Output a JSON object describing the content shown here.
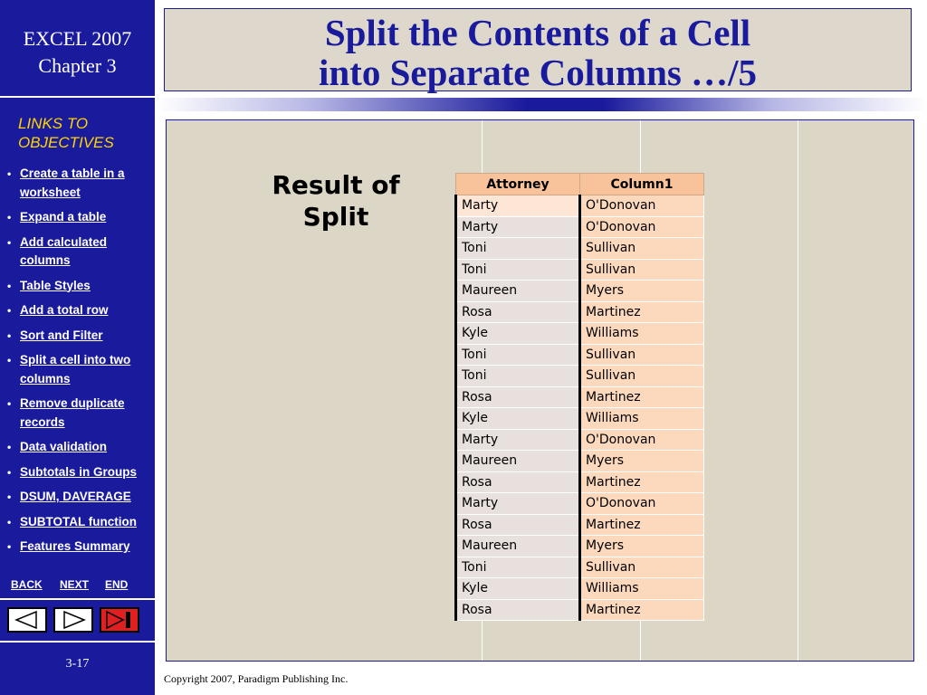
{
  "sidebar": {
    "brand_line1": "EXCEL 2007",
    "brand_line2": "Chapter 3",
    "links_heading_line1": "LINKS TO",
    "links_heading_line2": "OBJECTIVES",
    "links": [
      {
        "label": "Create a table in a worksheet"
      },
      {
        "label": "Expand a table"
      },
      {
        "label": "Add calculated columns"
      },
      {
        "label": "Table Styles"
      },
      {
        "label": "Add a total row"
      },
      {
        "label": "Sort and Filter"
      },
      {
        "label": "Split a cell into two columns"
      },
      {
        "label": "Remove duplicate records"
      },
      {
        "label": "Data validation"
      },
      {
        "label": "Subtotals in Groups"
      },
      {
        "label": "DSUM, DAVERAGE"
      },
      {
        "label": "SUBTOTAL function"
      },
      {
        "label": "Features Summary"
      }
    ],
    "nav": {
      "back": "BACK",
      "next": "NEXT",
      "end": "END"
    },
    "page_number": "3-17"
  },
  "title": {
    "line1": "Split the Contents of a Cell",
    "line2": "into Separate Columns …/5"
  },
  "main": {
    "caption_line1": "Result of",
    "caption_line2": "Split",
    "table": {
      "headers": [
        "Attorney",
        "Column1"
      ],
      "rows": [
        [
          "Marty",
          "O'Donovan"
        ],
        [
          "Marty",
          "O'Donovan"
        ],
        [
          "Toni",
          "Sullivan"
        ],
        [
          "Toni",
          "Sullivan"
        ],
        [
          "Maureen",
          "Myers"
        ],
        [
          "Rosa",
          "Martinez"
        ],
        [
          "Kyle",
          "Williams"
        ],
        [
          "Toni",
          "Sullivan"
        ],
        [
          "Toni",
          "Sullivan"
        ],
        [
          "Rosa",
          "Martinez"
        ],
        [
          "Kyle",
          "Williams"
        ],
        [
          "Marty",
          "O'Donovan"
        ],
        [
          "Maureen",
          "Myers"
        ],
        [
          "Rosa",
          "Martinez"
        ],
        [
          "Marty",
          "O'Donovan"
        ],
        [
          "Rosa",
          "Martinez"
        ],
        [
          "Maureen",
          "Myers"
        ],
        [
          "Toni",
          "Sullivan"
        ],
        [
          "Kyle",
          "Williams"
        ],
        [
          "Rosa",
          "Martinez"
        ]
      ]
    }
  },
  "footer": {
    "copyright": "Copyright 2007, Paradigm Publishing Inc."
  },
  "colors": {
    "sidebar_bg": "#1a1a9c",
    "links_heading": "#ffd400",
    "title_text": "#1a1a9c",
    "header_fill": "#f8c39a",
    "column1_fill": "#fcd9bd"
  },
  "icons": {
    "back": "left-triangle-icon",
    "next": "right-triangle-icon",
    "end": "end-icon"
  }
}
